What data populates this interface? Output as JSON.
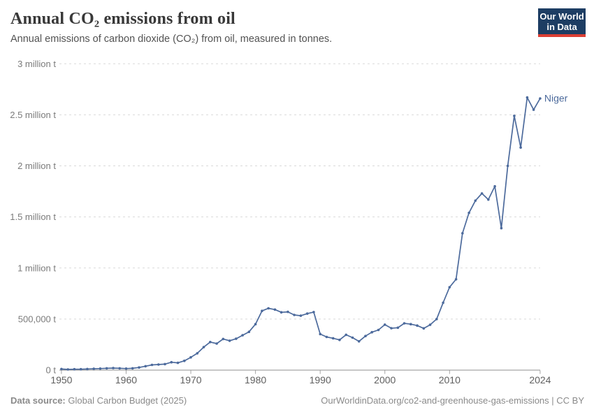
{
  "header": {
    "title": "Annual CO₂ emissions from oil",
    "subtitle": "Annual emissions of carbon dioxide (CO₂) from oil, measured in tonnes.",
    "logo": {
      "line1": "Our World",
      "line2": "in Data",
      "bg_color": "#1d3d63",
      "accent_color": "#dc3f34",
      "text_color": "#ffffff"
    }
  },
  "chart_data": {
    "type": "line",
    "title": "Annual CO₂ emissions from oil",
    "xlabel": "",
    "ylabel": "",
    "grid": "dashed-horizontal",
    "legend_position": "end-of-line-label",
    "xlim": [
      1949.7,
      2024
    ],
    "ylim": [
      0,
      3000000
    ],
    "x_ticks": [
      1950,
      1960,
      1970,
      1980,
      1990,
      2000,
      2010,
      2024
    ],
    "y_ticks": [
      {
        "value": 0,
        "label": "0 t"
      },
      {
        "value": 500000,
        "label": "500,000 t"
      },
      {
        "value": 1000000,
        "label": "1 million t"
      },
      {
        "value": 1500000,
        "label": "1.5 million t"
      },
      {
        "value": 2000000,
        "label": "2 million t"
      },
      {
        "value": 2500000,
        "label": "2.5 million t"
      },
      {
        "value": 3000000,
        "label": "3 million t"
      }
    ],
    "series": [
      {
        "name": "Niger",
        "color": "#4c6a9c",
        "x": [
          1950,
          1951,
          1952,
          1953,
          1954,
          1955,
          1956,
          1957,
          1958,
          1959,
          1960,
          1961,
          1962,
          1963,
          1964,
          1965,
          1966,
          1967,
          1968,
          1969,
          1970,
          1971,
          1972,
          1973,
          1974,
          1975,
          1976,
          1977,
          1978,
          1979,
          1980,
          1981,
          1982,
          1983,
          1984,
          1985,
          1986,
          1987,
          1988,
          1989,
          1990,
          1991,
          1992,
          1993,
          1994,
          1995,
          1996,
          1997,
          1998,
          1999,
          2000,
          2001,
          2002,
          2003,
          2004,
          2005,
          2006,
          2007,
          2008,
          2009,
          2010,
          2011,
          2012,
          2013,
          2014,
          2015,
          2016,
          2017,
          2018,
          2019,
          2020,
          2021,
          2022,
          2023,
          2024
        ],
        "values": [
          11000,
          7000,
          9000,
          9000,
          11000,
          13000,
          15000,
          18000,
          20000,
          18000,
          15000,
          18000,
          26000,
          38000,
          51000,
          55000,
          59000,
          77000,
          71000,
          91000,
          125000,
          165000,
          225000,
          275000,
          260000,
          305000,
          288000,
          307000,
          341000,
          375000,
          450000,
          580000,
          605000,
          593000,
          566000,
          570000,
          540000,
          533000,
          553000,
          568000,
          353000,
          325000,
          312000,
          296000,
          346000,
          318000,
          282000,
          334000,
          371000,
          393000,
          445000,
          410000,
          415000,
          458000,
          450000,
          436000,
          409000,
          444000,
          500000,
          660000,
          812000,
          890000,
          1340000,
          1540000,
          1660000,
          1730000,
          1670000,
          1800000,
          1390000,
          2000000,
          2490000,
          2180000,
          2670000,
          2550000,
          2660000
        ]
      }
    ],
    "entity_label": "Niger",
    "colors": {
      "gridline": "#d9d9d9",
      "axis_line": "#8f8f8f",
      "tick_mark": "#a5a5a5",
      "y_tick_label": "#7b7b7b",
      "x_tick_label": "#5f5f5f"
    }
  },
  "footer": {
    "source_label": "Data source:",
    "source_value": "Global Carbon Budget (2025)",
    "link": "OurWorldinData.org/co2-and-greenhouse-gas-emissions | CC BY"
  }
}
